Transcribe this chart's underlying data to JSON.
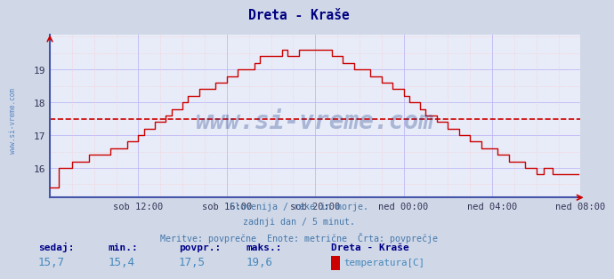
{
  "title": "Dreta - Kraše",
  "title_color": "#000080",
  "background_color": "#d0d8e8",
  "plot_bg_color": "#e8ecf8",
  "grid_color_major": "#aaaaff",
  "grid_color_minor": "#ffbbbb",
  "line_color": "#cc0000",
  "avg_line_color": "#cc0000",
  "avg_line_value": 17.5,
  "ylim": [
    15.1,
    20.05
  ],
  "yticks": [
    16,
    17,
    18,
    19
  ],
  "x_labels": [
    "sob 12:00",
    "sob 16:00",
    "sob 20:00",
    "ned 00:00",
    "ned 04:00",
    "ned 08:00"
  ],
  "subtitle_lines": [
    "Slovenija / reke in morje.",
    "zadnji dan / 5 minut.",
    "Meritve: povprečne  Enote: metrične  Črta: povprečje"
  ],
  "subtitle_color": "#4477aa",
  "stats_labels": [
    "sedaj:",
    "min.:",
    "povpr.:",
    "maks.:"
  ],
  "stats_values": [
    "15,7",
    "15,4",
    "17,5",
    "19,6"
  ],
  "stats_label_color": "#000088",
  "stats_val_color": "#4488bb",
  "legend_title": "Dreta - Kraše",
  "legend_label": "temperatura[C]",
  "legend_color": "#cc0000",
  "watermark": "www.si-vreme.com",
  "watermark_color": "#1a3a8a",
  "side_label": "www.si-vreme.com",
  "side_label_color": "#4477bb",
  "num_points": 288
}
